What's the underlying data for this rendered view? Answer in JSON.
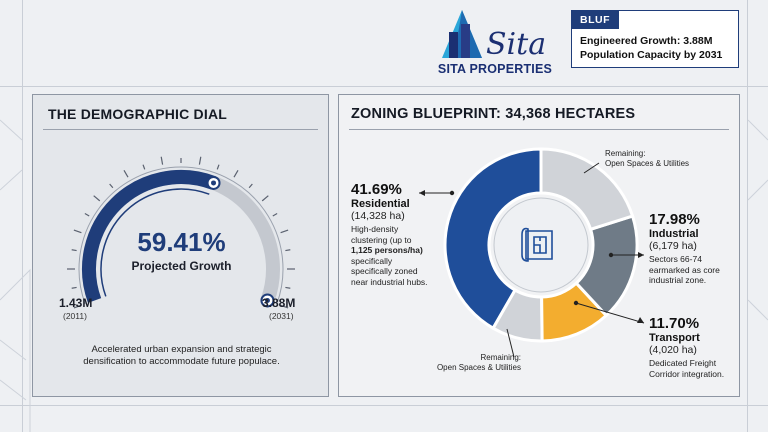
{
  "brand": {
    "logo_text": "Sita",
    "name": "SITA PROPERTIES"
  },
  "bluf": {
    "tag": "BLUF",
    "line1": "Engineered Growth: 3.88M",
    "line2": "Population Capacity by 2031"
  },
  "demographic": {
    "title": "THE DEMOGRAPHIC DIAL",
    "value": "59.41%",
    "label": "Projected Growth",
    "min_value": "1.43M",
    "min_year": "(2011)",
    "max_value": "3.88M",
    "max_year": "(2031)",
    "progress_fraction": 0.5941,
    "caption_line1": "Accelerated urban expansion and strategic",
    "caption_line2": "densification to accommodate future populace."
  },
  "zoning": {
    "title": "ZONING BLUEPRINT: 34,368 HECTARES",
    "center_icon": "blueprint-icon",
    "segments": [
      {
        "key": "residential",
        "percent": 41.69,
        "color": "#1f4e9a"
      },
      {
        "key": "remaining_bottom",
        "percent": 8.5,
        "color": "#d0d3d8"
      },
      {
        "key": "transport",
        "percent": 11.7,
        "color": "#f3ad2f"
      },
      {
        "key": "industrial",
        "percent": 17.98,
        "color": "#6f7b87"
      },
      {
        "key": "remaining_top",
        "percent": 20.13,
        "color": "#d0d3d8"
      }
    ],
    "residential": {
      "pct": "41.69%",
      "name": "Residential",
      "ha": "(14,328 ha)",
      "desc": [
        "High-density",
        "clustering (up to",
        "1,125 persons/ha)",
        "specifically",
        "specifically zoned",
        "near industrial hubs."
      ]
    },
    "industrial": {
      "pct": "17.98%",
      "name": "Industrial",
      "ha": "(6,179 ha)",
      "desc": [
        "Sectors 66-74",
        "earmarked as core",
        "industrial zone."
      ]
    },
    "transport": {
      "pct": "11.70%",
      "name": "Transport",
      "ha": "(4,020 ha)",
      "desc": [
        "Dedicated Freight",
        "Corridor integration."
      ]
    },
    "remaining_top": {
      "line1": "Remaining:",
      "line2": "Open Spaces & Utilities"
    },
    "remaining_bottom": {
      "line1": "Remaining:",
      "line2": "Open Spaces & Utilities"
    }
  },
  "colors": {
    "navy": "#1f3d7a",
    "residential": "#1f4e9a",
    "industrial": "#6f7b87",
    "transport": "#f3ad2f",
    "remaining": "#d0d3d8"
  }
}
